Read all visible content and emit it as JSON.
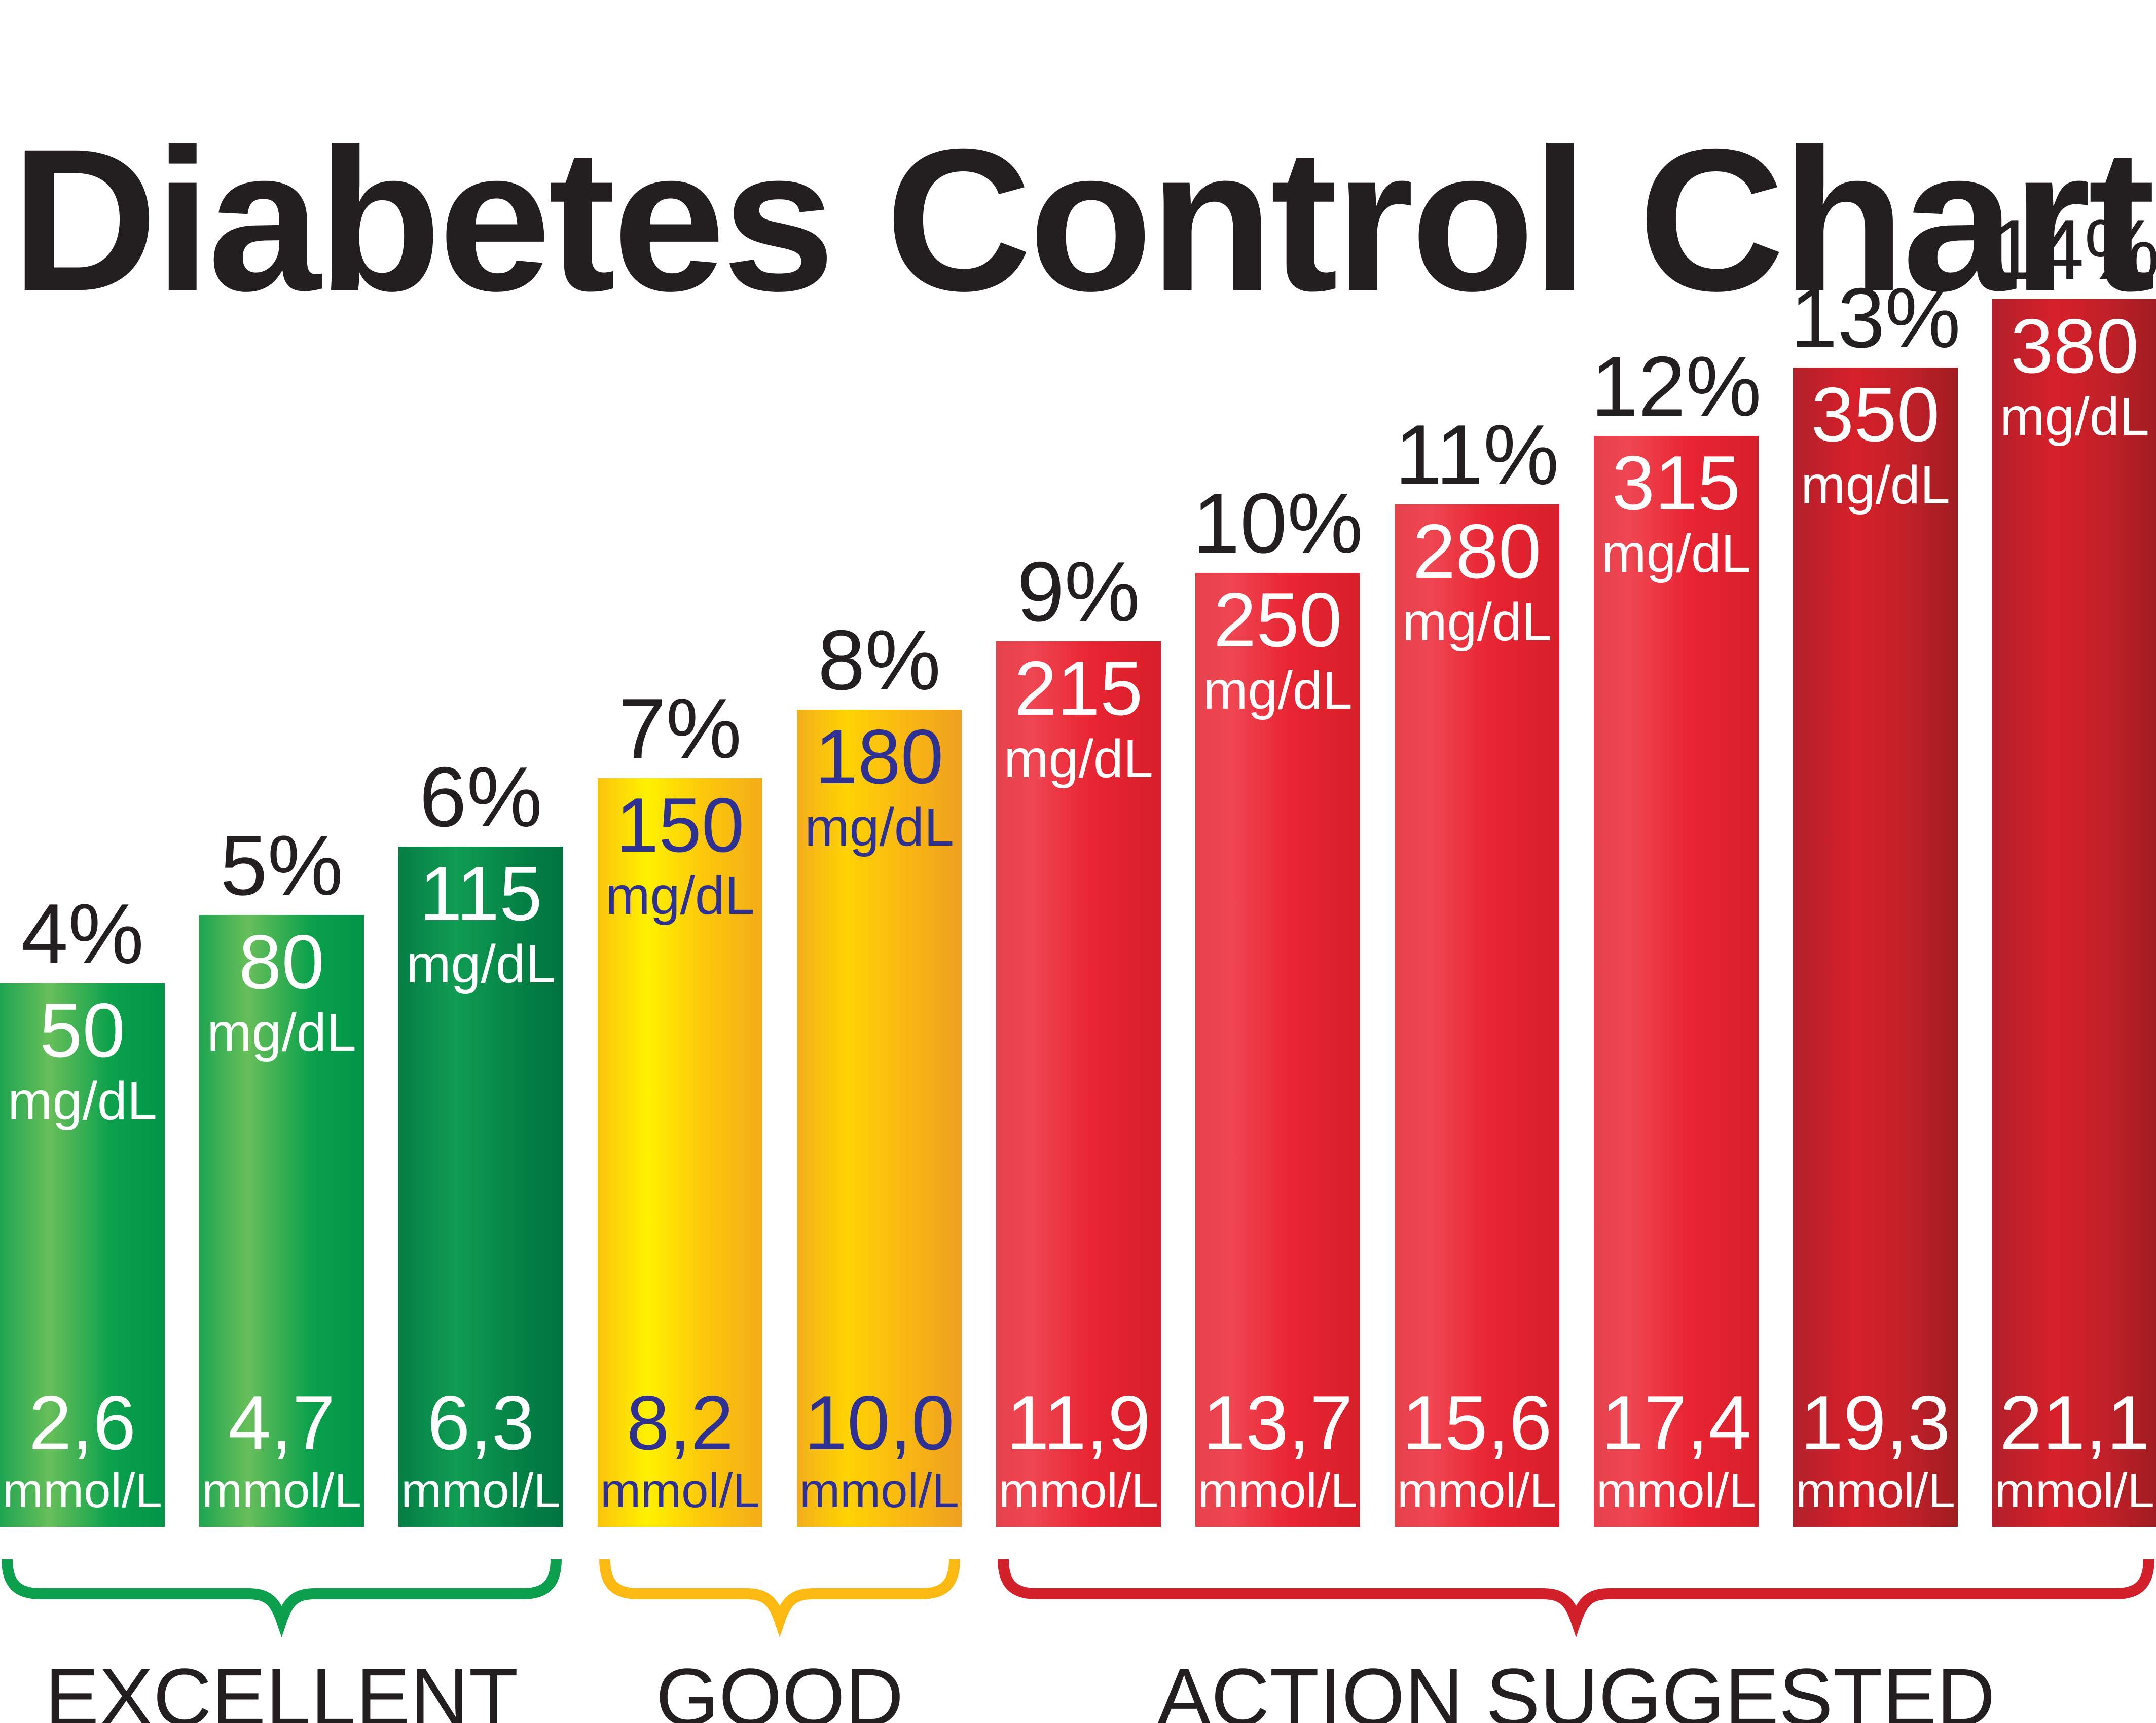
{
  "title": "Diabetes Control Charts",
  "colors": {
    "green": "#0c9f4e",
    "green_dark": "#047e45",
    "yellow": "#fcb912",
    "red": "#e92432",
    "red_dark": "#c0202a",
    "navy_text": "#2e3192",
    "label_black": "#231f20"
  },
  "chart_data": {
    "type": "bar",
    "title": "Diabetes Control Charts",
    "categories": [
      "4%",
      "5%",
      "6%",
      "7%",
      "8%",
      "9%",
      "10%",
      "11%",
      "12%",
      "13%",
      "14%"
    ],
    "series": [
      {
        "name": "mg/dL",
        "values": [
          50,
          80,
          115,
          150,
          180,
          215,
          250,
          280,
          315,
          350,
          380
        ]
      },
      {
        "name": "mmol/L",
        "values": [
          "2,6",
          "4,7",
          "6,3",
          "8,2",
          "10,0",
          "11,9",
          "13,7",
          "15,6",
          "17,4",
          "19,3",
          "21,1"
        ]
      }
    ],
    "unit_top": "mg/dL",
    "unit_bottom": "mmol/L",
    "bar_styles": [
      "green",
      "green",
      "green-dark",
      "yellow",
      "amber",
      "red",
      "red",
      "red",
      "red",
      "red-dark",
      "red-dark"
    ],
    "text_styles": [
      "white",
      "white",
      "white",
      "navy",
      "navy",
      "white",
      "white",
      "white",
      "white",
      "white",
      "white"
    ],
    "groups": [
      {
        "label": "EXCELLENT",
        "bars": [
          0,
          1,
          2
        ],
        "color": "#0c9f4e"
      },
      {
        "label": "GOOD",
        "bars": [
          3,
          4
        ],
        "color": "#fcb912"
      },
      {
        "label": "ACTION SUGGESTED",
        "bars": [
          5,
          6,
          7,
          8,
          9,
          10
        ],
        "color": "#d2202b"
      }
    ],
    "legend_position": "none",
    "grid": false,
    "layout_hint": "11 vertical bars, equal baseline, linearly increasing heights, value labels inside bars, percent labels above bars, grouped underbraces with category labels below"
  }
}
